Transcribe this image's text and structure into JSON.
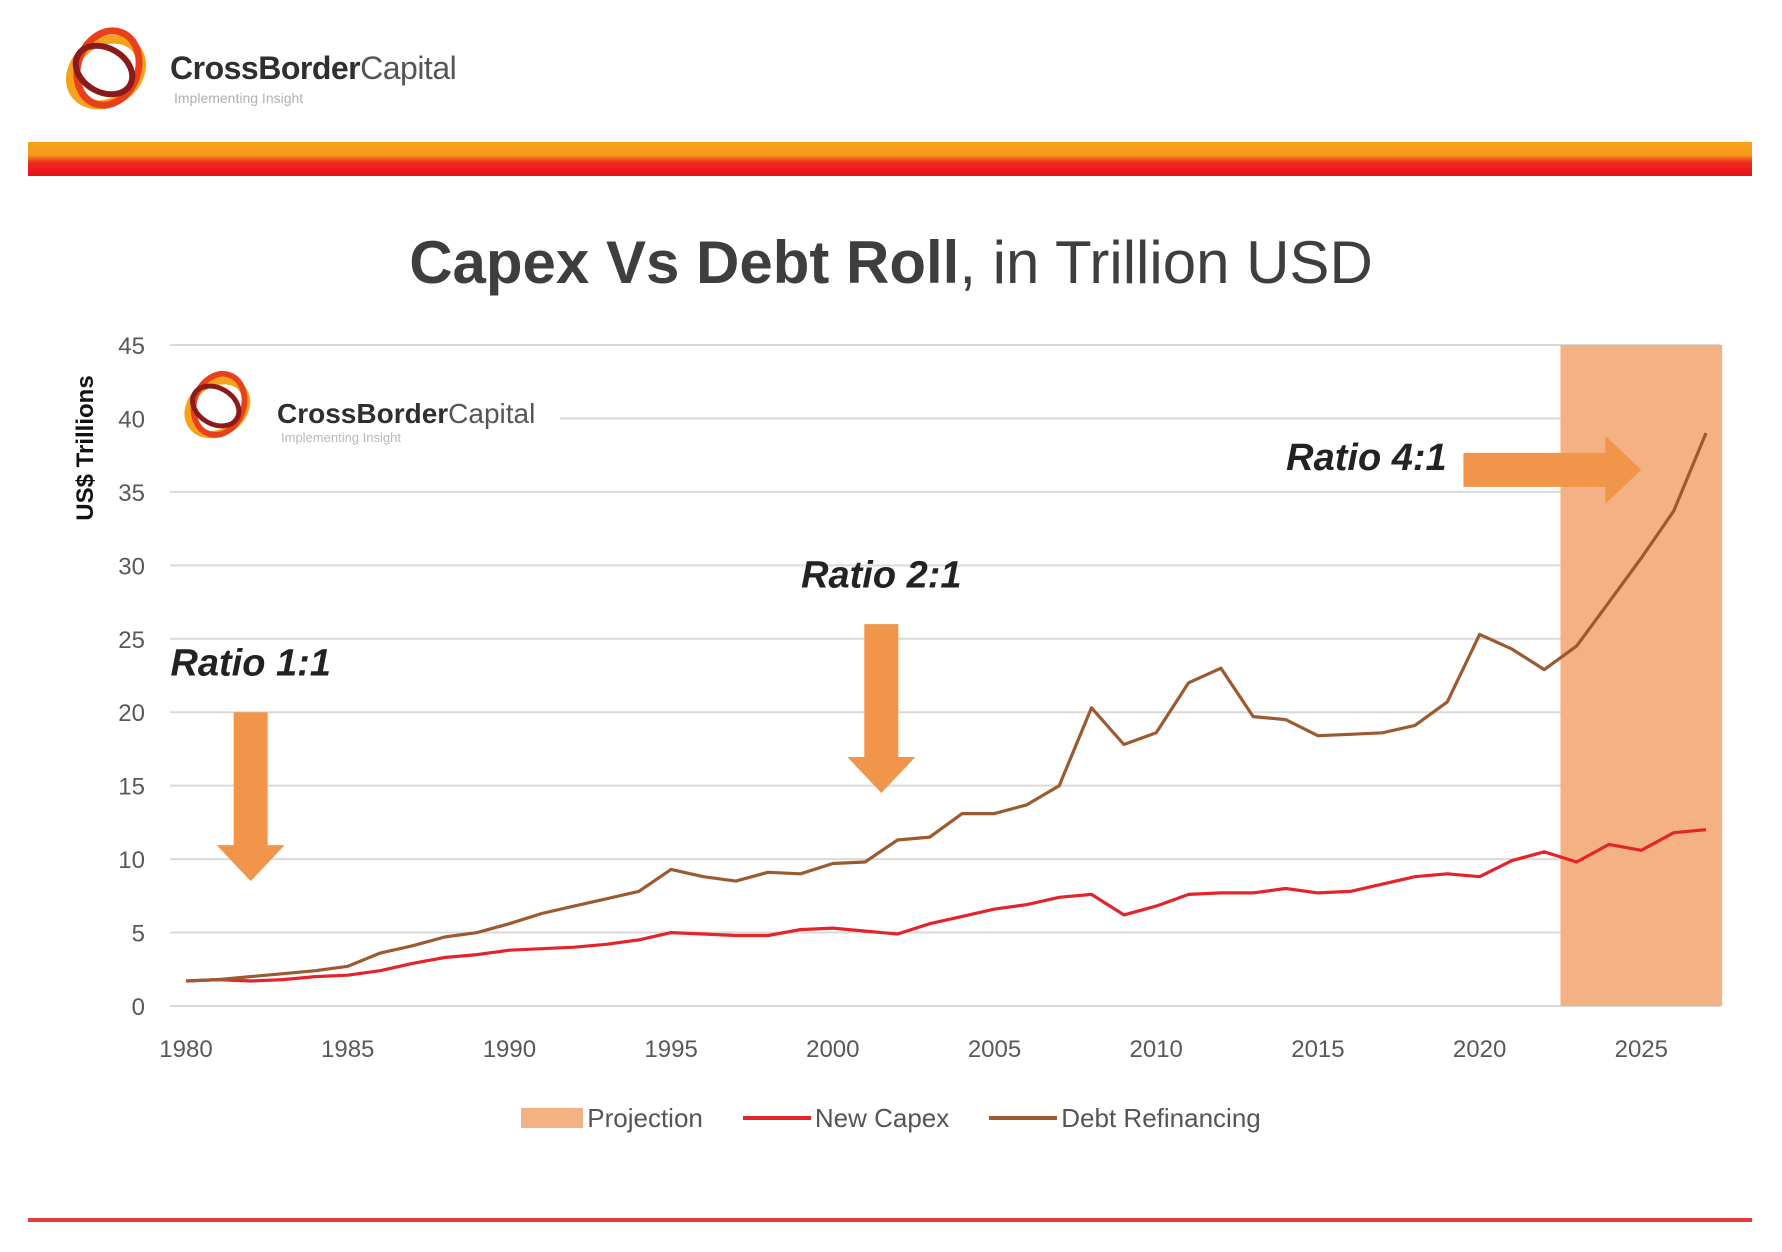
{
  "brand": {
    "name_bold": "CrossBorder",
    "name_regular": "Capital",
    "tagline": "Implementing Insight"
  },
  "title": {
    "bold": "Capex Vs Debt Roll",
    "regular": ", in Trillion USD"
  },
  "colors": {
    "projection": "#f4b183",
    "new_capex": "#e3242b",
    "debt_refinancing": "#9c5a30",
    "arrow": "#f0954a",
    "stripe_top": "#f7a21b",
    "stripe_bottom": "#e8101a",
    "gridline": "#d9d9d9"
  },
  "chart_data": {
    "type": "line",
    "title": "Capex Vs Debt Roll, in Trillion USD",
    "xlabel": "",
    "ylabel": "US$ Trillions",
    "xlim": [
      1980,
      2027
    ],
    "ylim": [
      0,
      45
    ],
    "x_ticks": [
      1980,
      1985,
      1990,
      1995,
      2000,
      2005,
      2010,
      2015,
      2020,
      2025
    ],
    "y_ticks": [
      0,
      5,
      10,
      15,
      20,
      25,
      30,
      35,
      40,
      45
    ],
    "grid": "horizontal",
    "legend_position": "bottom",
    "projection": {
      "label": "Projection",
      "from": 2022.5,
      "to": 2027.5
    },
    "x": [
      1980,
      1981,
      1982,
      1983,
      1984,
      1985,
      1986,
      1987,
      1988,
      1989,
      1990,
      1991,
      1992,
      1993,
      1994,
      1995,
      1996,
      1997,
      1998,
      1999,
      2000,
      2001,
      2002,
      2003,
      2004,
      2005,
      2006,
      2007,
      2008,
      2009,
      2010,
      2011,
      2012,
      2013,
      2014,
      2015,
      2016,
      2017,
      2018,
      2019,
      2020,
      2021,
      2022,
      2023,
      2024,
      2025,
      2026,
      2027
    ],
    "series": [
      {
        "name": "New Capex",
        "color": "#e3242b",
        "values": [
          1.7,
          1.8,
          1.7,
          1.8,
          2.0,
          2.1,
          2.4,
          2.9,
          3.3,
          3.5,
          3.8,
          3.9,
          4.0,
          4.2,
          4.5,
          5.0,
          4.9,
          4.8,
          4.8,
          5.2,
          5.3,
          5.1,
          4.9,
          5.6,
          6.1,
          6.6,
          6.9,
          7.4,
          7.6,
          6.2,
          6.8,
          7.6,
          7.7,
          7.7,
          8.0,
          7.7,
          7.8,
          8.3,
          8.8,
          9.0,
          8.8,
          9.9,
          10.5,
          9.8,
          11.0,
          10.6,
          11.8,
          12.0
        ]
      },
      {
        "name": "Debt Refinancing",
        "color": "#9c5a30",
        "values": [
          1.7,
          1.8,
          2.0,
          2.2,
          2.4,
          2.7,
          3.6,
          4.1,
          4.7,
          5.0,
          5.6,
          6.3,
          6.8,
          7.3,
          7.8,
          9.3,
          8.8,
          8.5,
          9.1,
          9.0,
          9.7,
          9.8,
          11.3,
          11.5,
          13.1,
          13.1,
          13.7,
          15.0,
          20.3,
          17.8,
          18.6,
          22.0,
          23.0,
          19.7,
          19.5,
          18.4,
          18.5,
          18.6,
          19.1,
          20.7,
          25.3,
          24.3,
          22.9,
          24.5,
          27.5,
          30.5,
          33.7,
          39.0
        ]
      }
    ],
    "annotations": [
      {
        "text": "Ratio 1:1",
        "x": 1982,
        "y": 22.5,
        "arrow": "down",
        "arrow_x": 1982,
        "arrow_from": 20,
        "arrow_to": 8.5
      },
      {
        "text": "Ratio 2:1",
        "x": 2001.5,
        "y": 28.5,
        "arrow": "down",
        "arrow_x": 2001.5,
        "arrow_from": 26,
        "arrow_to": 14.5
      },
      {
        "text": "Ratio 4:1",
        "x": 2016.5,
        "y": 36.5,
        "arrow": "right",
        "arrow_y": 36.5,
        "arrow_from": 2019.5,
        "arrow_to": 2025
      }
    ]
  }
}
